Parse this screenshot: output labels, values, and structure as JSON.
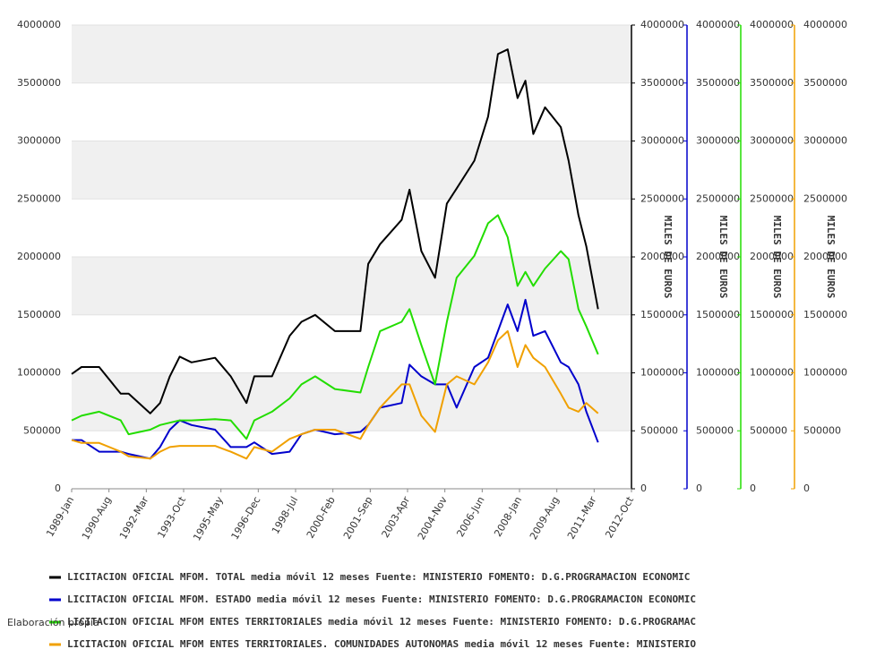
{
  "chart_data": {
    "type": "line",
    "x": [
      "1989-01",
      "1989-06",
      "1990-03",
      "1991-02",
      "1991-06",
      "1992-05",
      "1992-10",
      "1993-03",
      "1993-08",
      "1994-02",
      "1995-02",
      "1995-10",
      "1996-06",
      "1996-10",
      "1997-07",
      "1998-04",
      "1998-10",
      "1999-05",
      "2000-03",
      "2001-04",
      "2001-08",
      "2002-02",
      "2003-01",
      "2003-05",
      "2003-11",
      "2004-06",
      "2004-12",
      "2005-05",
      "2006-02",
      "2006-09",
      "2007-02",
      "2007-07",
      "2007-12",
      "2008-04",
      "2008-08",
      "2009-02",
      "2009-10",
      "2010-02",
      "2010-07",
      "2010-11",
      "2011-05"
    ],
    "xlim": [
      "1989-01",
      "2012-10"
    ],
    "xticks": [
      {
        "value": "1989-01",
        "label": "1989-Jan"
      },
      {
        "value": "1990-08",
        "label": "1990-Aug"
      },
      {
        "value": "1992-03",
        "label": "1992-Mar"
      },
      {
        "value": "1993-10",
        "label": "1993-Oct"
      },
      {
        "value": "1995-05",
        "label": "1995-May"
      },
      {
        "value": "1996-12",
        "label": "1996-Dec"
      },
      {
        "value": "1998-07",
        "label": "1998-Jul"
      },
      {
        "value": "2000-02",
        "label": "2000-Feb"
      },
      {
        "value": "2001-09",
        "label": "2001-Sep"
      },
      {
        "value": "2003-04",
        "label": "2003-Apr"
      },
      {
        "value": "2004-11",
        "label": "2004-Nov"
      },
      {
        "value": "2006-06",
        "label": "2006-Jun"
      },
      {
        "value": "2008-01",
        "label": "2008-Jan"
      },
      {
        "value": "2009-08",
        "label": "2009-Aug"
      },
      {
        "value": "2011-03",
        "label": "2011-Mar"
      },
      {
        "value": "2012-10",
        "label": "2012-Oct"
      }
    ],
    "ylim": [
      0,
      4000000
    ],
    "yticks": [
      0,
      500000,
      1000000,
      1500000,
      2000000,
      2500000,
      3000000,
      3500000,
      4000000
    ],
    "grid": true,
    "right_axes": [
      {
        "color": "#000000",
        "label": "MILES DE EUROS",
        "ylim": [
          0,
          4000000
        ],
        "yticks": [
          0,
          500000,
          1000000,
          1500000,
          2000000,
          2500000,
          3000000,
          3500000,
          4000000
        ]
      },
      {
        "color": "#0000cc",
        "label": "MILES DE EUROS",
        "ylim": [
          0,
          4000000
        ],
        "yticks": [
          0,
          500000,
          1000000,
          1500000,
          2000000,
          2500000,
          3000000,
          3500000,
          4000000
        ]
      },
      {
        "color": "#22dd00",
        "label": "MILES DE EUROS",
        "ylim": [
          0,
          4000000
        ],
        "yticks": [
          0,
          500000,
          1000000,
          1500000,
          2000000,
          2500000,
          3000000,
          3500000,
          4000000
        ]
      },
      {
        "color": "#f0a000",
        "label": "MILES DE EUROS",
        "ylim": [
          0,
          4000000
        ],
        "yticks": [
          0,
          500000,
          1000000,
          1500000,
          2000000,
          2500000,
          3000000,
          3500000,
          4000000
        ]
      }
    ],
    "series": [
      {
        "name": "LICITACION OFICIAL MFOM. TOTAL media móvil 12 meses  Fuente: MINISTERIO FOMENTO: D.G.PROGRAMACION ECONOMIC",
        "color": "#000000",
        "values": [
          990000,
          1050000,
          1050000,
          820000,
          820000,
          650000,
          740000,
          970000,
          1140000,
          1090000,
          1130000,
          970000,
          740000,
          970000,
          970000,
          1320000,
          1440000,
          1500000,
          1360000,
          1360000,
          1940000,
          2110000,
          2320000,
          2580000,
          2050000,
          1820000,
          2460000,
          2590000,
          2830000,
          3210000,
          3750000,
          3790000,
          3370000,
          3520000,
          3060000,
          3290000,
          3120000,
          2830000,
          2360000,
          2090000,
          1550000
        ]
      },
      {
        "name": "LICITACION OFICIAL MFOM. ESTADO media móvil 12 meses  Fuente: MINISTERIO FOMENTO: D.G.PROGRAMACION ECONOMIC",
        "color": "#0000cc",
        "values": [
          420000,
          420000,
          320000,
          320000,
          300000,
          260000,
          360000,
          510000,
          590000,
          550000,
          510000,
          360000,
          360000,
          400000,
          300000,
          320000,
          470000,
          510000,
          470000,
          490000,
          550000,
          700000,
          740000,
          1070000,
          970000,
          900000,
          900000,
          700000,
          1050000,
          1130000,
          1360000,
          1590000,
          1360000,
          1630000,
          1320000,
          1360000,
          1090000,
          1050000,
          900000,
          665000,
          400000
        ]
      },
      {
        "name": "LICITACION OFICIAL MFOM ENTES TERRITORIALES media móvil 12 meses  Fuente: MINISTERIO FOMENTO: D.G.PROGRAMAC",
        "color": "#22dd00",
        "values": [
          590000,
          630000,
          665000,
          590000,
          470000,
          510000,
          550000,
          570000,
          590000,
          590000,
          600000,
          590000,
          430000,
          590000,
          665000,
          780000,
          900000,
          970000,
          860000,
          830000,
          1050000,
          1360000,
          1440000,
          1550000,
          1240000,
          900000,
          1440000,
          1820000,
          2010000,
          2290000,
          2360000,
          2170000,
          1750000,
          1870000,
          1750000,
          1900000,
          2050000,
          1980000,
          1550000,
          1400000,
          1160000
        ]
      },
      {
        "name": "LICITACION OFICIAL MFOM ENTES TERRITORIALES. COMUNIDADES AUTONOMAS media móvil 12 meses  Fuente: MINISTERIO",
        "color": "#f0a000",
        "values": [
          420000,
          395000,
          395000,
          320000,
          280000,
          260000,
          320000,
          360000,
          370000,
          370000,
          370000,
          320000,
          260000,
          360000,
          320000,
          430000,
          470000,
          510000,
          510000,
          430000,
          550000,
          700000,
          900000,
          900000,
          630000,
          490000,
          900000,
          970000,
          900000,
          1090000,
          1280000,
          1360000,
          1050000,
          1240000,
          1130000,
          1050000,
          820000,
          700000,
          665000,
          740000,
          650000
        ]
      }
    ],
    "note": "Elaboración propia"
  }
}
